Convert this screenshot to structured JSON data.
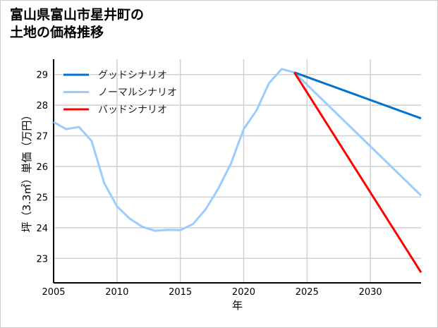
{
  "chart_data": {
    "type": "line",
    "title": [
      "富山県富山市星井町の",
      "土地の価格推移"
    ],
    "xlabel": "年",
    "ylabel": "坪（3.3㎡）単価（万円）",
    "xlim": [
      2005,
      2034
    ],
    "ylim": [
      22.2,
      29.5
    ],
    "xticks": [
      2005,
      2010,
      2015,
      2020,
      2025,
      2030
    ],
    "yticks": [
      23,
      24,
      25,
      26,
      27,
      28,
      29
    ],
    "grid": true,
    "legend_position": "top-left",
    "series": [
      {
        "name": "グッドシナリオ",
        "color": "#0072cf",
        "x": [
          2024,
          2034
        ],
        "y": [
          29.07,
          27.57
        ]
      },
      {
        "name": "ノーマルシナリオ",
        "color": "#99ccff",
        "x": [
          2005,
          2006,
          2007,
          2008,
          2009,
          2010,
          2011,
          2012,
          2013,
          2014,
          2015,
          2016,
          2017,
          2018,
          2019,
          2020,
          2021,
          2022,
          2023,
          2024,
          2034
        ],
        "y": [
          27.45,
          27.22,
          27.29,
          26.83,
          25.45,
          24.7,
          24.3,
          24.03,
          23.9,
          23.93,
          23.92,
          24.12,
          24.6,
          25.28,
          26.1,
          27.22,
          27.82,
          28.72,
          29.18,
          29.07,
          25.05
        ]
      },
      {
        "name": "バッドシナリオ",
        "color": "#ff0000",
        "x": [
          2024,
          2034
        ],
        "y": [
          29.07,
          22.54
        ]
      }
    ]
  }
}
